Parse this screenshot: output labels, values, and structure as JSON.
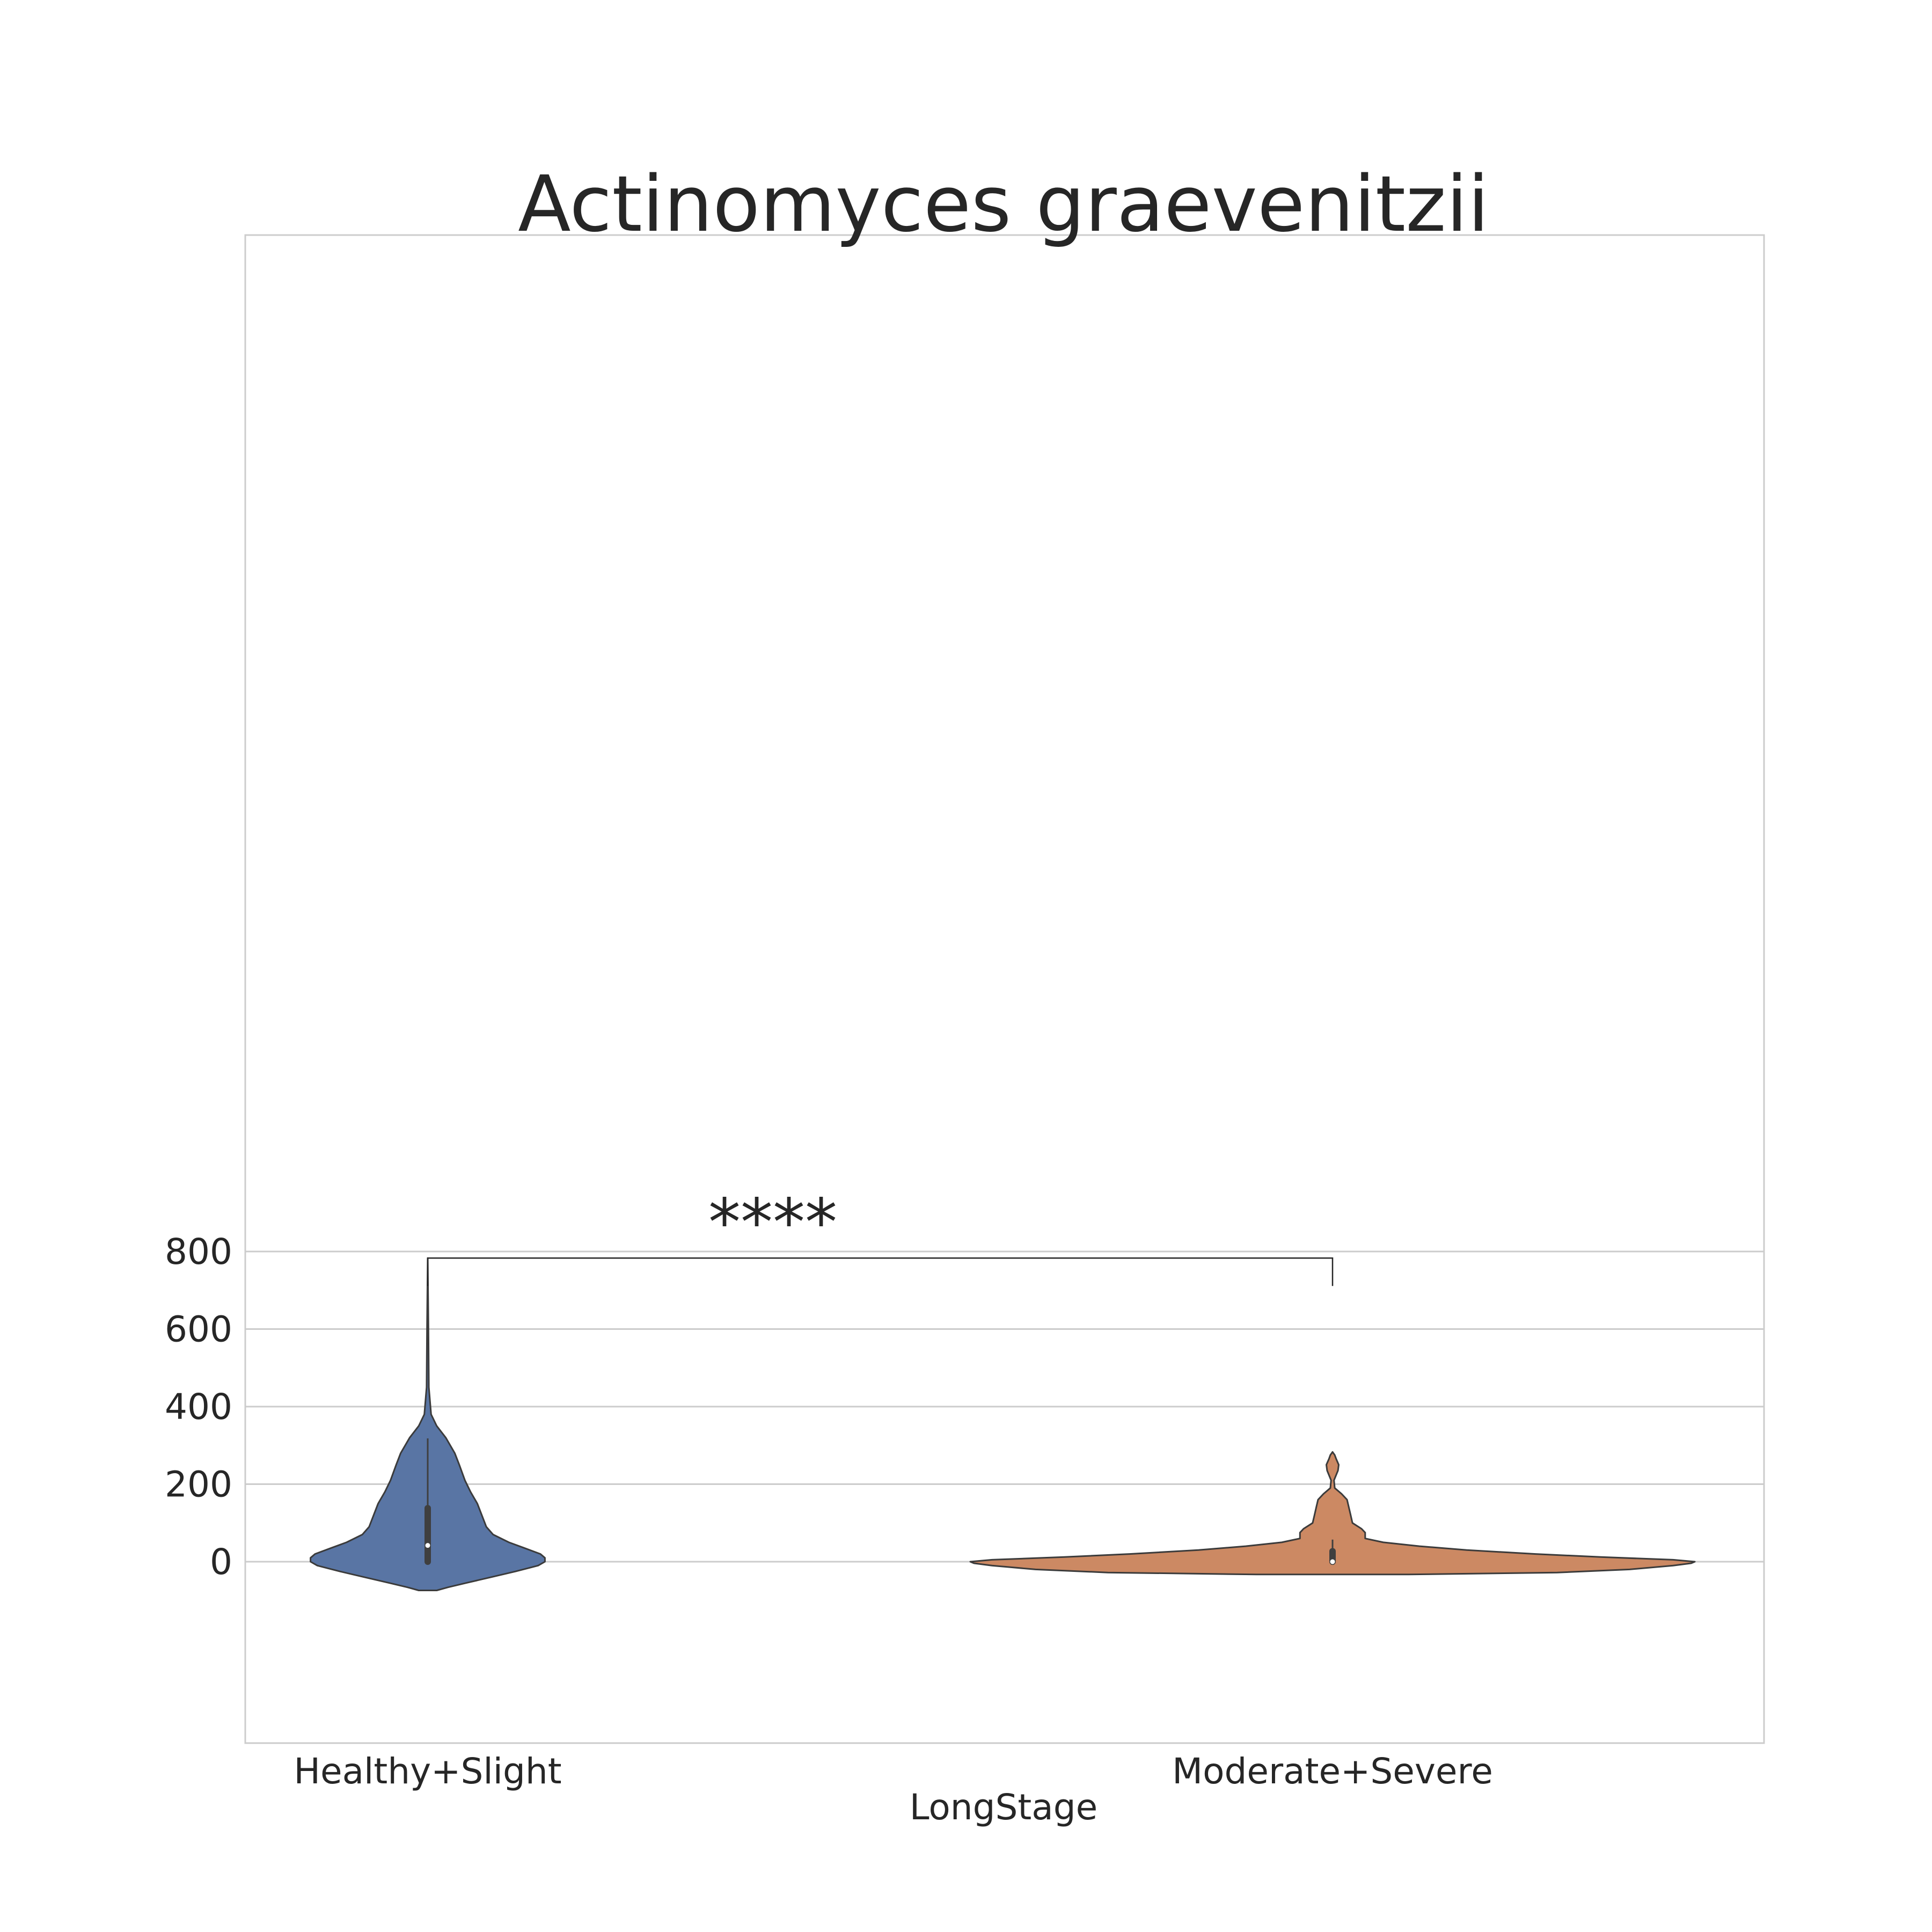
{
  "chart_data": {
    "type": "violin",
    "title": "Actinomyces graevenitzii",
    "xlabel": "LongStage",
    "ylabel": "",
    "ylim": [
      -115,
      855
    ],
    "yticks": [
      0,
      200,
      400,
      600,
      800
    ],
    "grid": true,
    "categories": [
      "Healthy+Slight",
      "Moderate+Severe"
    ],
    "colors": {
      "Healthy+Slight": "#5975a4",
      "Moderate+Severe": "#cc8963",
      "outline": "#3b3b3b",
      "grid": "#cccccc",
      "frame": "#cccccc"
    },
    "violins": [
      {
        "category": "Healthy+Slight",
        "box": {
          "q1": 0,
          "median": 42,
          "q3": 138,
          "whisker_low": 0,
          "whisker_high": 318
        },
        "density": [
          [
            -74,
            0.04
          ],
          [
            -66,
            0.09
          ],
          [
            -55,
            0.17
          ],
          [
            -40,
            0.28
          ],
          [
            -25,
            0.39
          ],
          [
            -10,
            0.49
          ],
          [
            0,
            0.52
          ],
          [
            10,
            0.52
          ],
          [
            20,
            0.5
          ],
          [
            35,
            0.43
          ],
          [
            50,
            0.36
          ],
          [
            70,
            0.29
          ],
          [
            90,
            0.26
          ],
          [
            120,
            0.24
          ],
          [
            150,
            0.22
          ],
          [
            180,
            0.19
          ],
          [
            210,
            0.165
          ],
          [
            250,
            0.14
          ],
          [
            280,
            0.12
          ],
          [
            320,
            0.08
          ],
          [
            350,
            0.04
          ],
          [
            380,
            0.015
          ],
          [
            450,
            0.005
          ],
          [
            600,
            0.003
          ],
          [
            783,
            0.0
          ]
        ]
      },
      {
        "category": "Moderate+Severe",
        "box": {
          "q1": 0,
          "median": 0,
          "q3": 27,
          "whisker_low": 0,
          "whisker_high": 57
        },
        "density": [
          [
            -33,
            0.21
          ],
          [
            -28,
            0.62
          ],
          [
            -20,
            0.82
          ],
          [
            -10,
            0.94
          ],
          [
            -4,
            0.99
          ],
          [
            0,
            1.0
          ],
          [
            5,
            0.94
          ],
          [
            12,
            0.74
          ],
          [
            20,
            0.56
          ],
          [
            30,
            0.37
          ],
          [
            40,
            0.24
          ],
          [
            50,
            0.14
          ],
          [
            60,
            0.09
          ],
          [
            68,
            0.09
          ],
          [
            75,
            0.09
          ],
          [
            85,
            0.08
          ],
          [
            100,
            0.055
          ],
          [
            120,
            0.05
          ],
          [
            140,
            0.045
          ],
          [
            160,
            0.04
          ],
          [
            175,
            0.025
          ],
          [
            190,
            0.006
          ],
          [
            210,
            0.004
          ],
          [
            235,
            0.015
          ],
          [
            250,
            0.017
          ],
          [
            265,
            0.01
          ],
          [
            275,
            0.006
          ],
          [
            283,
            0.0
          ]
        ]
      }
    ],
    "annotations": [
      {
        "text": "****",
        "between": [
          "Healthy+Slight",
          "Moderate+Severe"
        ],
        "y": 783
      }
    ]
  }
}
